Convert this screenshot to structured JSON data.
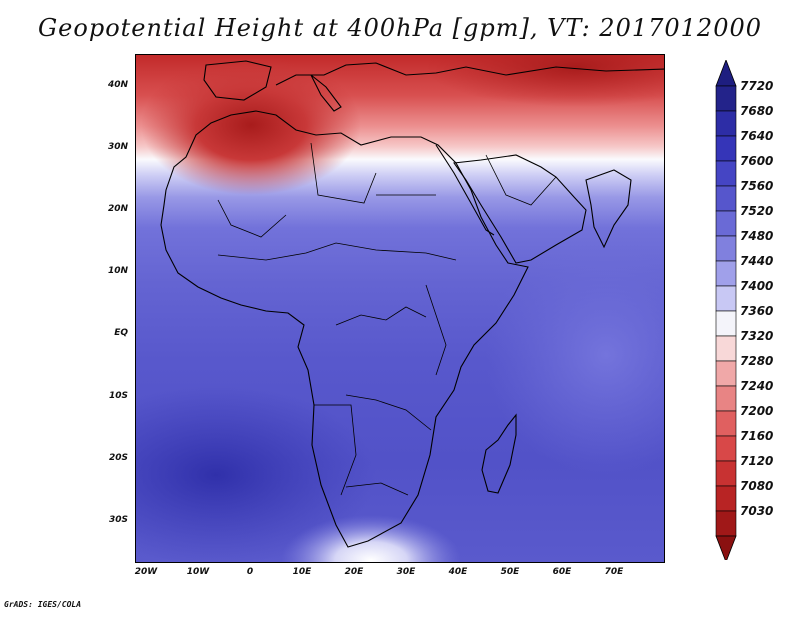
{
  "title": "Geopotential Height at 400hPa [gpm], VT: 2017012000",
  "credit": "GrADS: IGES/COLA",
  "axes": {
    "lat_labels": [
      "40N",
      "30N",
      "20N",
      "10N",
      "EQ",
      "10S",
      "20S",
      "30S"
    ],
    "lon_labels": [
      "20W",
      "10W",
      "0",
      "10E",
      "20E",
      "30E",
      "40E",
      "50E",
      "60E",
      "70E"
    ]
  },
  "colorbar": {
    "levels": [
      "7720",
      "7680",
      "7640",
      "7600",
      "7560",
      "7520",
      "7480",
      "7440",
      "7400",
      "7360",
      "7320",
      "7280",
      "7240",
      "7200",
      "7160",
      "7120",
      "7080",
      "7030"
    ],
    "colors": [
      "#23238a",
      "#2d2da6",
      "#3535b8",
      "#4545c4",
      "#5656cc",
      "#6a6ad6",
      "#8080de",
      "#a0a0ea",
      "#c8c8f4",
      "#f4f4fa",
      "#f8d8d8",
      "#f0a8a8",
      "#e88484",
      "#e06060",
      "#d84848",
      "#c83232",
      "#b82424",
      "#a01818"
    ],
    "top_arrow_color": "#1e1e80",
    "bottom_arrow_color": "#8a1010"
  }
}
